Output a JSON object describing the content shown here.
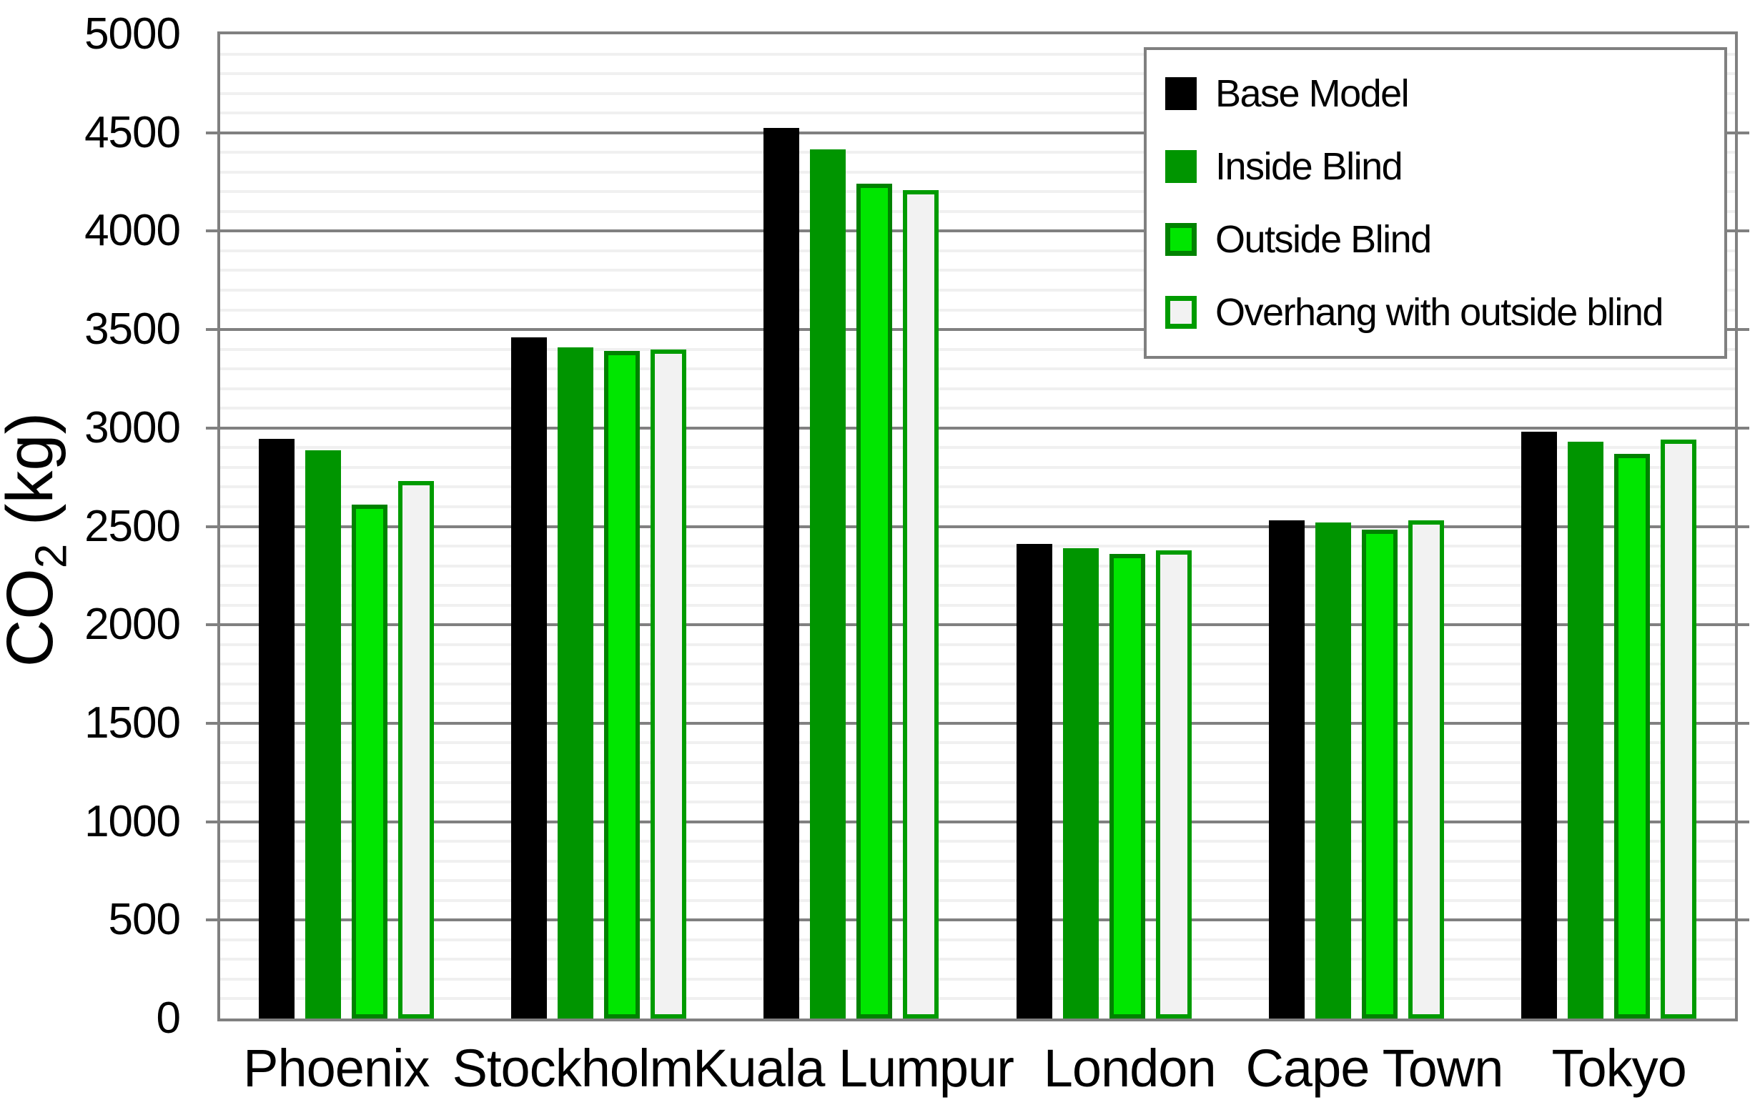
{
  "chart_data": {
    "type": "bar",
    "title": "",
    "ylabel": "CO₂ (kg)",
    "ylabel_prefix": "CO",
    "ylabel_sub": "2",
    "ylabel_unit": " (kg)",
    "categories": [
      "Phoenix",
      "Stockholm",
      "Kuala Lumpur",
      "London",
      "Cape Town",
      "Tokyo"
    ],
    "series": [
      {
        "name": "Base Model",
        "color": "#000000",
        "border": "#000000",
        "values": [
          2945,
          3460,
          4525,
          2410,
          2530,
          2980
        ]
      },
      {
        "name": "Inside Blind",
        "color": "#009500",
        "border": "#009500",
        "values": [
          2885,
          3410,
          4415,
          2390,
          2520,
          2930
        ]
      },
      {
        "name": "Outside Blind",
        "color": "#00e600",
        "border": "#008200",
        "values": [
          2610,
          3390,
          4240,
          2360,
          2485,
          2870
        ]
      },
      {
        "name": "Overhang with outside blind",
        "color": "#f2f2f2",
        "border": "#009b00",
        "values": [
          2730,
          3400,
          4210,
          2380,
          2530,
          2940
        ]
      }
    ],
    "ylim": [
      0,
      5000
    ],
    "ytick_step": 500,
    "minor_step": 100,
    "yticks": [
      "0",
      "500",
      "1000",
      "1500",
      "2000",
      "2500",
      "3000",
      "3500",
      "4000",
      "4500",
      "5000"
    ],
    "grid": "horizontal-major-and-minor",
    "legend_position": "top-right-inside-plot",
    "colors": {
      "major_grid": "#808080",
      "minor_grid": "#f0f0f0",
      "plot_border": "#808080",
      "legend_border": "#808080",
      "text": "#000000",
      "background": "#ffffff"
    }
  }
}
